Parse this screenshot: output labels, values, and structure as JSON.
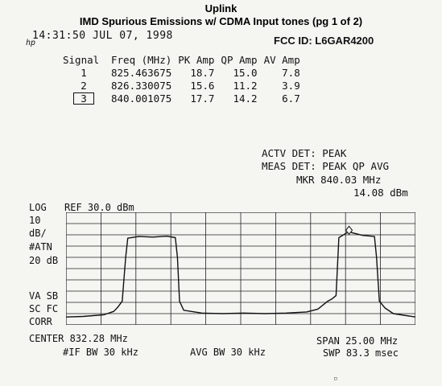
{
  "header": {
    "title": "Uplink",
    "subtitle": "IMD Spurious Emissions w/ CDMA Input tones (pg 1 of 2)",
    "fcc_id": "FCC ID:  L6GAR4200"
  },
  "timestamp": "14:31:50  JUL 07, 1998",
  "signal_table": {
    "headers": [
      "Signal",
      "Freq (MHz)",
      "PK Amp",
      "QP Amp",
      "AV Amp"
    ],
    "rows": [
      {
        "signal": "1",
        "freq": "825.463675",
        "pk": "18.7",
        "qp": "15.0",
        "av": "7.8"
      },
      {
        "signal": "2",
        "freq": "826.330075",
        "pk": "15.6",
        "qp": "11.2",
        "av": "3.9"
      },
      {
        "signal": "3",
        "freq": "840.001075",
        "pk": "17.7",
        "qp": "14.2",
        "av": "6.7"
      }
    ]
  },
  "detectors": {
    "actv": "ACTV DET:  PEAK",
    "meas": "MEAS DET:  PEAK QP AVG",
    "marker_freq": "MKR 840.03 MHz",
    "marker_level": "14.08 dBm"
  },
  "left_labels": {
    "log": "LOG",
    "ref": "REF 30.0 dBm",
    "scale1": "10",
    "scale2": "dB/",
    "atn": "#ATN",
    "atn_val": "20 dB",
    "vasb": "VA SB",
    "scfc": "SC FC",
    "corr": "CORR"
  },
  "bottom": {
    "center": "CENTER 832.28 MHz",
    "span": "SPAN 25.00 MHz",
    "if_bw": "#IF BW 30 kHz",
    "avg_bw": "AVG BW 30 kHz",
    "swp": "SWP 83.3 msec"
  },
  "chart_data": {
    "type": "line",
    "xlabel": "",
    "ylabel": "",
    "x_range_mhz": [
      819.78,
      844.78
    ],
    "ylim_dbm": [
      -70,
      30
    ],
    "grid": true,
    "series": [
      {
        "x": [
          819.78,
          821.0,
          822.5,
          823.2,
          823.5,
          823.8,
          824.05,
          824.2,
          825.0,
          826.0,
          827.0,
          827.6,
          827.75,
          827.9,
          828.2,
          829.5,
          831.0,
          832.5,
          834.0,
          835.5,
          837.0,
          837.8,
          838.2,
          838.5,
          838.8,
          839.1,
          839.3,
          839.9,
          840.03,
          840.2,
          841.0,
          841.85,
          842.0,
          842.2,
          842.6,
          843.2,
          844.78
        ],
        "y": [
          -63.0,
          -62.5,
          -61.0,
          -58.0,
          -54.0,
          -49.0,
          -10.0,
          7.0,
          8.5,
          8.0,
          8.8,
          7.5,
          -10.0,
          -49.0,
          -57.0,
          -59.5,
          -60.0,
          -59.5,
          -60.0,
          -59.5,
          -58.5,
          -56.0,
          -52.0,
          -49.0,
          -47.0,
          -44.0,
          7.5,
          12.0,
          14.1,
          12.0,
          9.5,
          8.5,
          -10.0,
          -49.0,
          -55.0,
          -60.0,
          -63.0
        ]
      }
    ],
    "annotations": [
      {
        "label": "marker",
        "x": 840.03,
        "y": 14.08
      }
    ]
  }
}
